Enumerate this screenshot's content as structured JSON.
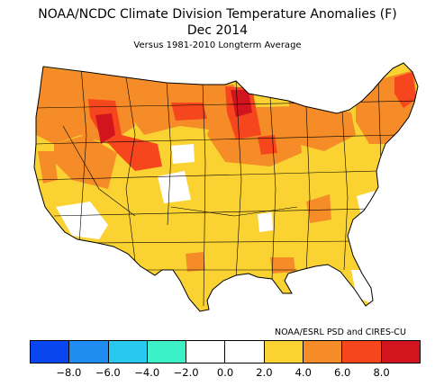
{
  "header": {
    "title": "NOAA/NCDC Climate Division Temperature Anomalies (F)",
    "period": "Dec 2014",
    "subtitle": "Versus 1981-2010 Longterm Average"
  },
  "credit": "NOAA/ESRL PSD and CIRES-CU",
  "legend": {
    "colors": [
      "#0a46f0",
      "#1e8cf0",
      "#28c8f0",
      "#3cf0c8",
      "#ffffff",
      "#ffffff",
      "#fad232",
      "#f58c28",
      "#f5461e",
      "#d2141e"
    ],
    "ticks": [
      "-8.0",
      "-6.0",
      "-4.0",
      "-2.0",
      "0.0",
      "2.0",
      "4.0",
      "6.0",
      "8.0"
    ]
  },
  "map_colors": {
    "warm1": "#fad232",
    "warm2": "#f58c28",
    "warm3": "#f5461e",
    "warm4": "#d2141e",
    "neutral": "#ffffff",
    "line": "#000000"
  }
}
